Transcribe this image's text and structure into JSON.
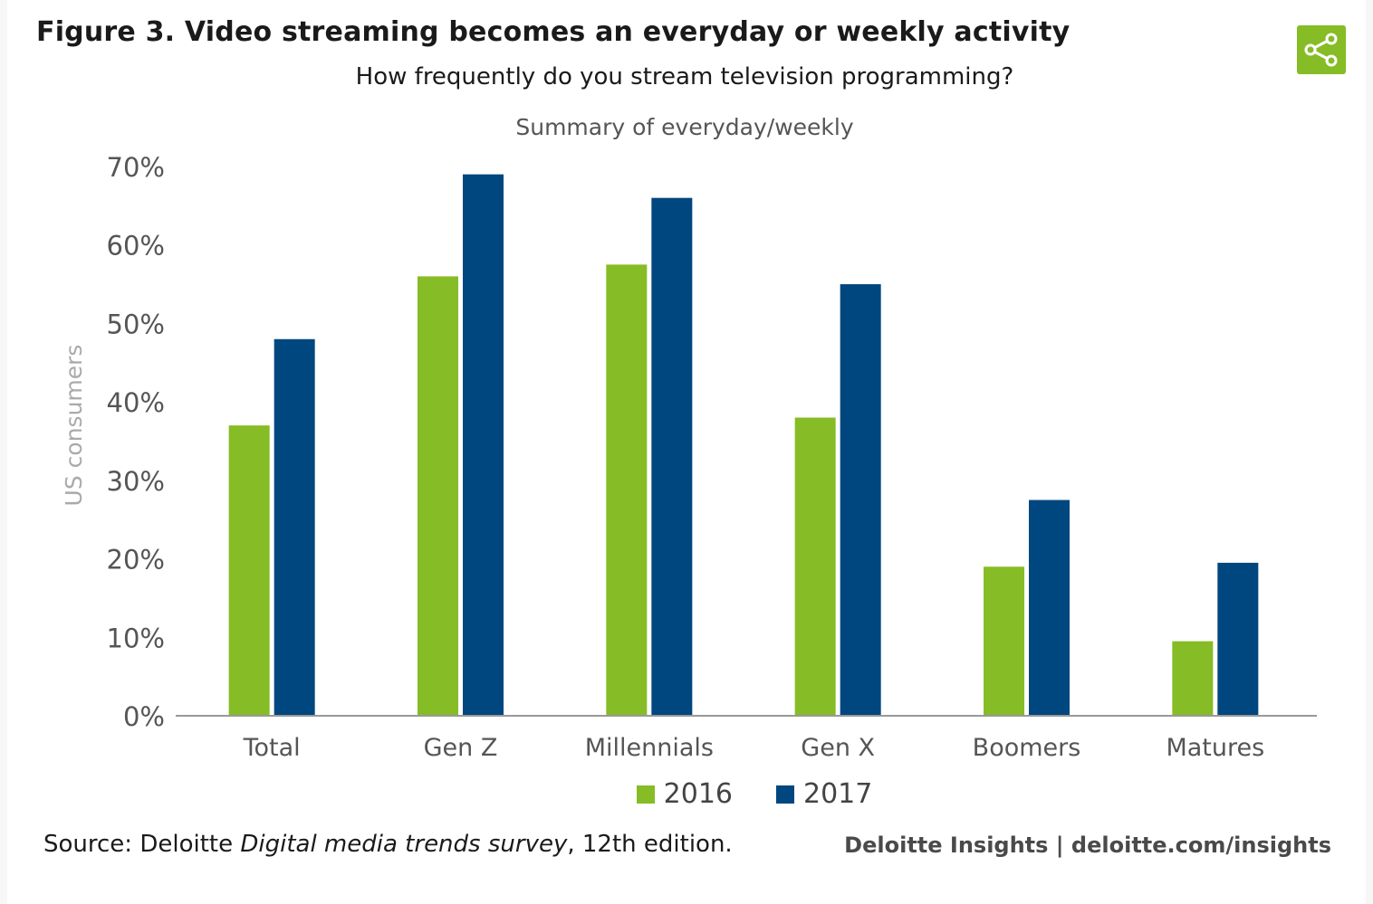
{
  "header": {
    "title": "Figure 3. Video streaming becomes an everyday or weekly activity",
    "subtitle": "How frequently do you stream television programming?",
    "summary": "Summary of everyday/weekly"
  },
  "footer": {
    "source_prefix": "Source: Deloitte ",
    "source_italic": "Digital media trends survey",
    "source_suffix": ", 12th edition.",
    "brand": "Deloitte Insights | deloitte.com/insights"
  },
  "colors": {
    "green": "#86bc25",
    "blue": "#00467f",
    "axis": "#999999",
    "tick_text": "#555555",
    "ylabel": "#aaaaaa"
  },
  "chart_data": {
    "type": "bar",
    "title": "Summary of everyday/weekly",
    "xlabel": "",
    "ylabel": "US consumers",
    "ylim": [
      0,
      70
    ],
    "yticks": [
      0,
      10,
      20,
      30,
      40,
      50,
      60,
      70
    ],
    "ytick_labels": [
      "0%",
      "10%",
      "20%",
      "30%",
      "40%",
      "50%",
      "60%",
      "70%"
    ],
    "categories": [
      "Total",
      "Gen Z",
      "Millennials",
      "Gen X",
      "Boomers",
      "Matures"
    ],
    "series": [
      {
        "name": "2016",
        "values": [
          37,
          56,
          57.5,
          38,
          19,
          9.5
        ]
      },
      {
        "name": "2017",
        "values": [
          48,
          69,
          66,
          55,
          27.5,
          19.5
        ]
      }
    ],
    "legend_position": "bottom-center",
    "grid": false
  }
}
